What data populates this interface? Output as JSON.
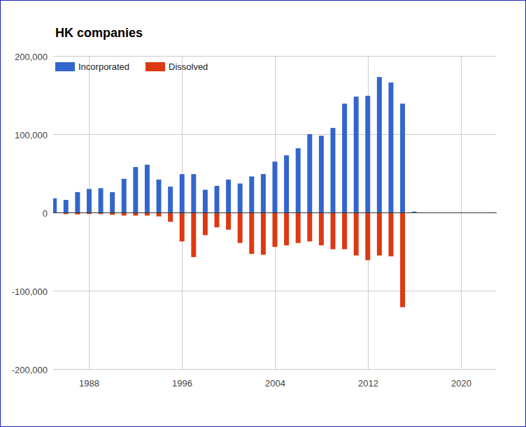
{
  "chart_data": {
    "type": "bar",
    "title": "HK companies",
    "x": [
      1985,
      1986,
      1987,
      1988,
      1989,
      1990,
      1991,
      1992,
      1993,
      1994,
      1995,
      1996,
      1997,
      1998,
      1999,
      2000,
      2001,
      2002,
      2003,
      2004,
      2005,
      2006,
      2007,
      2008,
      2009,
      2010,
      2011,
      2012,
      2013,
      2014,
      2015,
      2016
    ],
    "series": [
      {
        "name": "Incorporated",
        "color": "#3366cc",
        "values": [
          18000,
          16000,
          26000,
          30000,
          31000,
          26000,
          43000,
          58000,
          61000,
          42000,
          33000,
          49000,
          49000,
          29000,
          34000,
          42000,
          37000,
          46000,
          49000,
          65000,
          73000,
          82000,
          100000,
          98000,
          108000,
          139000,
          148000,
          149000,
          173000,
          166000,
          139000,
          1000
        ]
      },
      {
        "name": "Dissolved",
        "color": "#dc3912",
        "values": [
          -1000,
          -2000,
          -2500,
          -2000,
          -2000,
          -3000,
          -4000,
          -4000,
          -4000,
          -5000,
          -12000,
          -37000,
          -57000,
          -29000,
          -19000,
          -22000,
          -39000,
          -53000,
          -54000,
          -44000,
          -42000,
          -39000,
          -37000,
          -42000,
          -47000,
          -47000,
          -55000,
          -61000,
          -55000,
          -56000,
          -121000,
          0
        ]
      }
    ],
    "xlim": [
      1984.9,
      2023.1
    ],
    "xticks": [
      1988,
      1996,
      2004,
      2012,
      2020
    ],
    "ylim": [
      -200000,
      200000
    ],
    "yticks": [
      {
        "value": -200000,
        "label": "-200,000"
      },
      {
        "value": -100000,
        "label": "-100,000"
      },
      0,
      {
        "value": 100000,
        "label": "100,000"
      },
      {
        "value": 200000,
        "label": "200,000"
      }
    ],
    "grid": true,
    "legend": "top-left"
  }
}
